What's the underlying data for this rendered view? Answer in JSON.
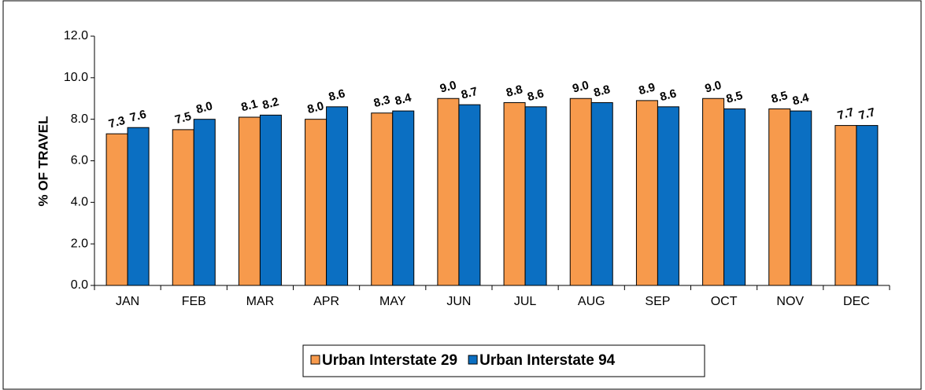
{
  "chart_data": {
    "type": "bar",
    "y_label": "% OF TRAVEL",
    "categories": [
      "JAN",
      "FEB",
      "MAR",
      "APR",
      "MAY",
      "JUN",
      "JUL",
      "AUG",
      "SEP",
      "OCT",
      "NOV",
      "DEC"
    ],
    "series": [
      {
        "name": "Urban Interstate 29",
        "color": "#f79a4c",
        "values": [
          7.3,
          7.5,
          8.1,
          8.0,
          8.3,
          9.0,
          8.8,
          9.0,
          8.9,
          9.0,
          8.5,
          7.7
        ],
        "value_labels": [
          "7.3",
          "7.5",
          "8.1",
          "8.0",
          "8.3",
          "9.0",
          "8.8",
          "9.0",
          "8.9",
          "9.0",
          "8.5",
          "7.7"
        ]
      },
      {
        "name": "Urban Interstate 94",
        "color": "#0b6fc2",
        "values": [
          7.6,
          8.0,
          8.2,
          8.6,
          8.4,
          8.7,
          8.6,
          8.8,
          8.6,
          8.5,
          8.4,
          7.7
        ],
        "value_labels": [
          "7.6",
          "8.0",
          "8.2",
          "8.6",
          "8.4",
          "8.7",
          "8.6",
          "8.8",
          "8.6",
          "8.5",
          "8.4",
          "7.7"
        ]
      }
    ],
    "ylim": [
      0,
      12
    ],
    "yticks": [
      {
        "value": 0,
        "label": "0.0"
      },
      {
        "value": 2,
        "label": "2.0"
      },
      {
        "value": 4,
        "label": "4.0"
      },
      {
        "value": 6,
        "label": "6.0"
      },
      {
        "value": 8,
        "label": "8.0"
      },
      {
        "value": 10,
        "label": "10.0"
      },
      {
        "value": 12,
        "label": "12.0"
      }
    ],
    "grid": false,
    "legend": "bottom"
  }
}
